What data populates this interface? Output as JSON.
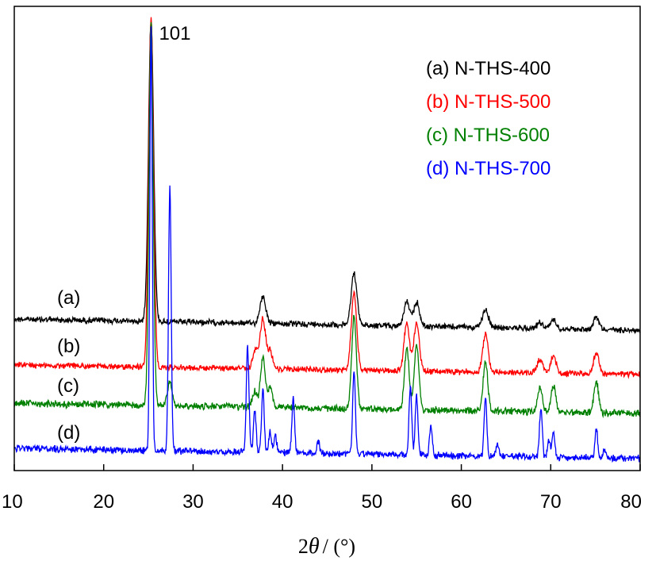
{
  "chart_data": {
    "type": "line",
    "title": "",
    "xlabel": {
      "prefix": "2",
      "symbol": "θ",
      "suffix": "/ (°)"
    },
    "ylabel": "",
    "xlim": [
      10,
      80
    ],
    "y_scale": "arbitrary",
    "grid": false,
    "legend_position": "top-right",
    "x_ticks": [
      10,
      20,
      30,
      40,
      50,
      60,
      70,
      80
    ],
    "x_tick_labels": [
      "10",
      "20",
      "30",
      "40",
      "50",
      "60",
      "70",
      "80"
    ],
    "annotations": [
      {
        "text": "101",
        "x": 25.3
      }
    ],
    "series": [
      {
        "name": "(a) N-THS-400",
        "curve_label": "(a)",
        "color": "#000000",
        "peaks": [
          [
            25.3,
            100
          ],
          [
            37.8,
            9
          ],
          [
            48.0,
            17
          ],
          [
            53.9,
            8
          ],
          [
            55.0,
            8
          ],
          [
            62.7,
            6
          ],
          [
            68.8,
            2
          ],
          [
            70.3,
            3
          ],
          [
            75.1,
            4
          ]
        ]
      },
      {
        "name": "(b) N-THS-500",
        "curve_label": "(b)",
        "color": "#ff0000",
        "peaks": [
          [
            25.3,
            100
          ],
          [
            37.0,
            5
          ],
          [
            37.8,
            14
          ],
          [
            38.6,
            5
          ],
          [
            48.0,
            22
          ],
          [
            53.9,
            14
          ],
          [
            55.0,
            14
          ],
          [
            62.7,
            11
          ],
          [
            68.8,
            4
          ],
          [
            70.3,
            5
          ],
          [
            75.1,
            6
          ]
        ]
      },
      {
        "name": "(c) N-THS-600",
        "curve_label": "(c)",
        "color": "#008000",
        "peaks": [
          [
            25.3,
            100
          ],
          [
            27.4,
            6
          ],
          [
            36.9,
            4
          ],
          [
            37.8,
            13
          ],
          [
            38.6,
            5
          ],
          [
            48.0,
            24
          ],
          [
            53.9,
            16
          ],
          [
            55.0,
            17
          ],
          [
            62.7,
            13
          ],
          [
            68.8,
            6
          ],
          [
            70.3,
            7
          ],
          [
            75.1,
            8
          ]
        ]
      },
      {
        "name": "(d) N-THS-700",
        "curve_label": "(d)",
        "color": "#0000ff",
        "peaks": [
          [
            25.3,
            100
          ],
          [
            27.4,
            62
          ],
          [
            36.1,
            25
          ],
          [
            36.9,
            10
          ],
          [
            37.8,
            15
          ],
          [
            38.6,
            5
          ],
          [
            39.2,
            4
          ],
          [
            41.2,
            13
          ],
          [
            44.0,
            3
          ],
          [
            48.0,
            20
          ],
          [
            54.3,
            16
          ],
          [
            55.0,
            14
          ],
          [
            56.6,
            7
          ],
          [
            62.7,
            14
          ],
          [
            64.0,
            3
          ],
          [
            68.9,
            12
          ],
          [
            69.8,
            4
          ],
          [
            70.3,
            6
          ],
          [
            75.1,
            7
          ],
          [
            76.0,
            2
          ]
        ]
      }
    ]
  }
}
